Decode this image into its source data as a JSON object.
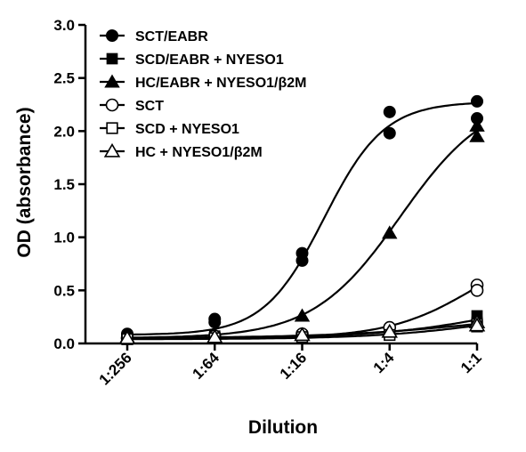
{
  "chart_data": {
    "type": "scatter",
    "title": "",
    "xlabel": "Dilution",
    "ylabel": "OD (absorbance)",
    "x_scale": "log",
    "x_tick_labels": [
      "1:256",
      "1:64",
      "1:16",
      "1:4",
      "1:1"
    ],
    "x_values": [
      0.00390625,
      0.015625,
      0.0625,
      0.25,
      1
    ],
    "xlim": [
      0.00390625,
      1
    ],
    "ylim": [
      0,
      3.0
    ],
    "y_ticks": [
      "0.0",
      "0.5",
      "1.0",
      "1.5",
      "2.0",
      "2.5",
      "3.0"
    ],
    "grid": false,
    "legend_position": "top-left",
    "fit_curves": "sigmoidal",
    "series": [
      {
        "name": "SCT/EABR",
        "marker": "circle-filled",
        "fill": true,
        "points": [
          [
            0.00390625,
            0.09
          ],
          [
            0.00390625,
            0.08
          ],
          [
            0.015625,
            0.23
          ],
          [
            0.015625,
            0.2
          ],
          [
            0.0625,
            0.85
          ],
          [
            0.0625,
            0.78
          ],
          [
            0.25,
            2.18
          ],
          [
            0.25,
            1.98
          ],
          [
            1,
            2.28
          ],
          [
            1,
            2.12
          ]
        ]
      },
      {
        "name": "SCD/EABR + NYESO1",
        "marker": "square-filled",
        "fill": true,
        "points": [
          [
            0.00390625,
            0.06
          ],
          [
            0.015625,
            0.07
          ],
          [
            0.0625,
            0.07
          ],
          [
            0.25,
            0.1
          ],
          [
            1,
            0.26
          ],
          [
            1,
            0.2
          ]
        ]
      },
      {
        "name": "HC/EABR + NYESO1/β2M",
        "marker": "triangle-filled",
        "fill": true,
        "points": [
          [
            0.00390625,
            0.06
          ],
          [
            0.015625,
            0.09
          ],
          [
            0.0625,
            0.26
          ],
          [
            0.25,
            1.04
          ],
          [
            1,
            2.05
          ],
          [
            1,
            1.95
          ]
        ]
      },
      {
        "name": "SCT",
        "marker": "circle-open",
        "fill": false,
        "points": [
          [
            0.00390625,
            0.05
          ],
          [
            0.015625,
            0.07
          ],
          [
            0.0625,
            0.09
          ],
          [
            0.25,
            0.15
          ],
          [
            1,
            0.55
          ],
          [
            1,
            0.5
          ]
        ]
      },
      {
        "name": "SCD + NYESO1",
        "marker": "square-open",
        "fill": false,
        "points": [
          [
            0.00390625,
            0.04
          ],
          [
            0.015625,
            0.05
          ],
          [
            0.0625,
            0.06
          ],
          [
            0.25,
            0.08
          ],
          [
            1,
            0.18
          ],
          [
            1,
            0.16
          ]
        ]
      },
      {
        "name": "HC + NYESO1/β2M",
        "marker": "triangle-open",
        "fill": false,
        "points": [
          [
            0.00390625,
            0.05
          ],
          [
            0.015625,
            0.06
          ],
          [
            0.0625,
            0.08
          ],
          [
            0.25,
            0.11
          ],
          [
            1,
            0.2
          ],
          [
            1,
            0.17
          ]
        ]
      }
    ]
  }
}
